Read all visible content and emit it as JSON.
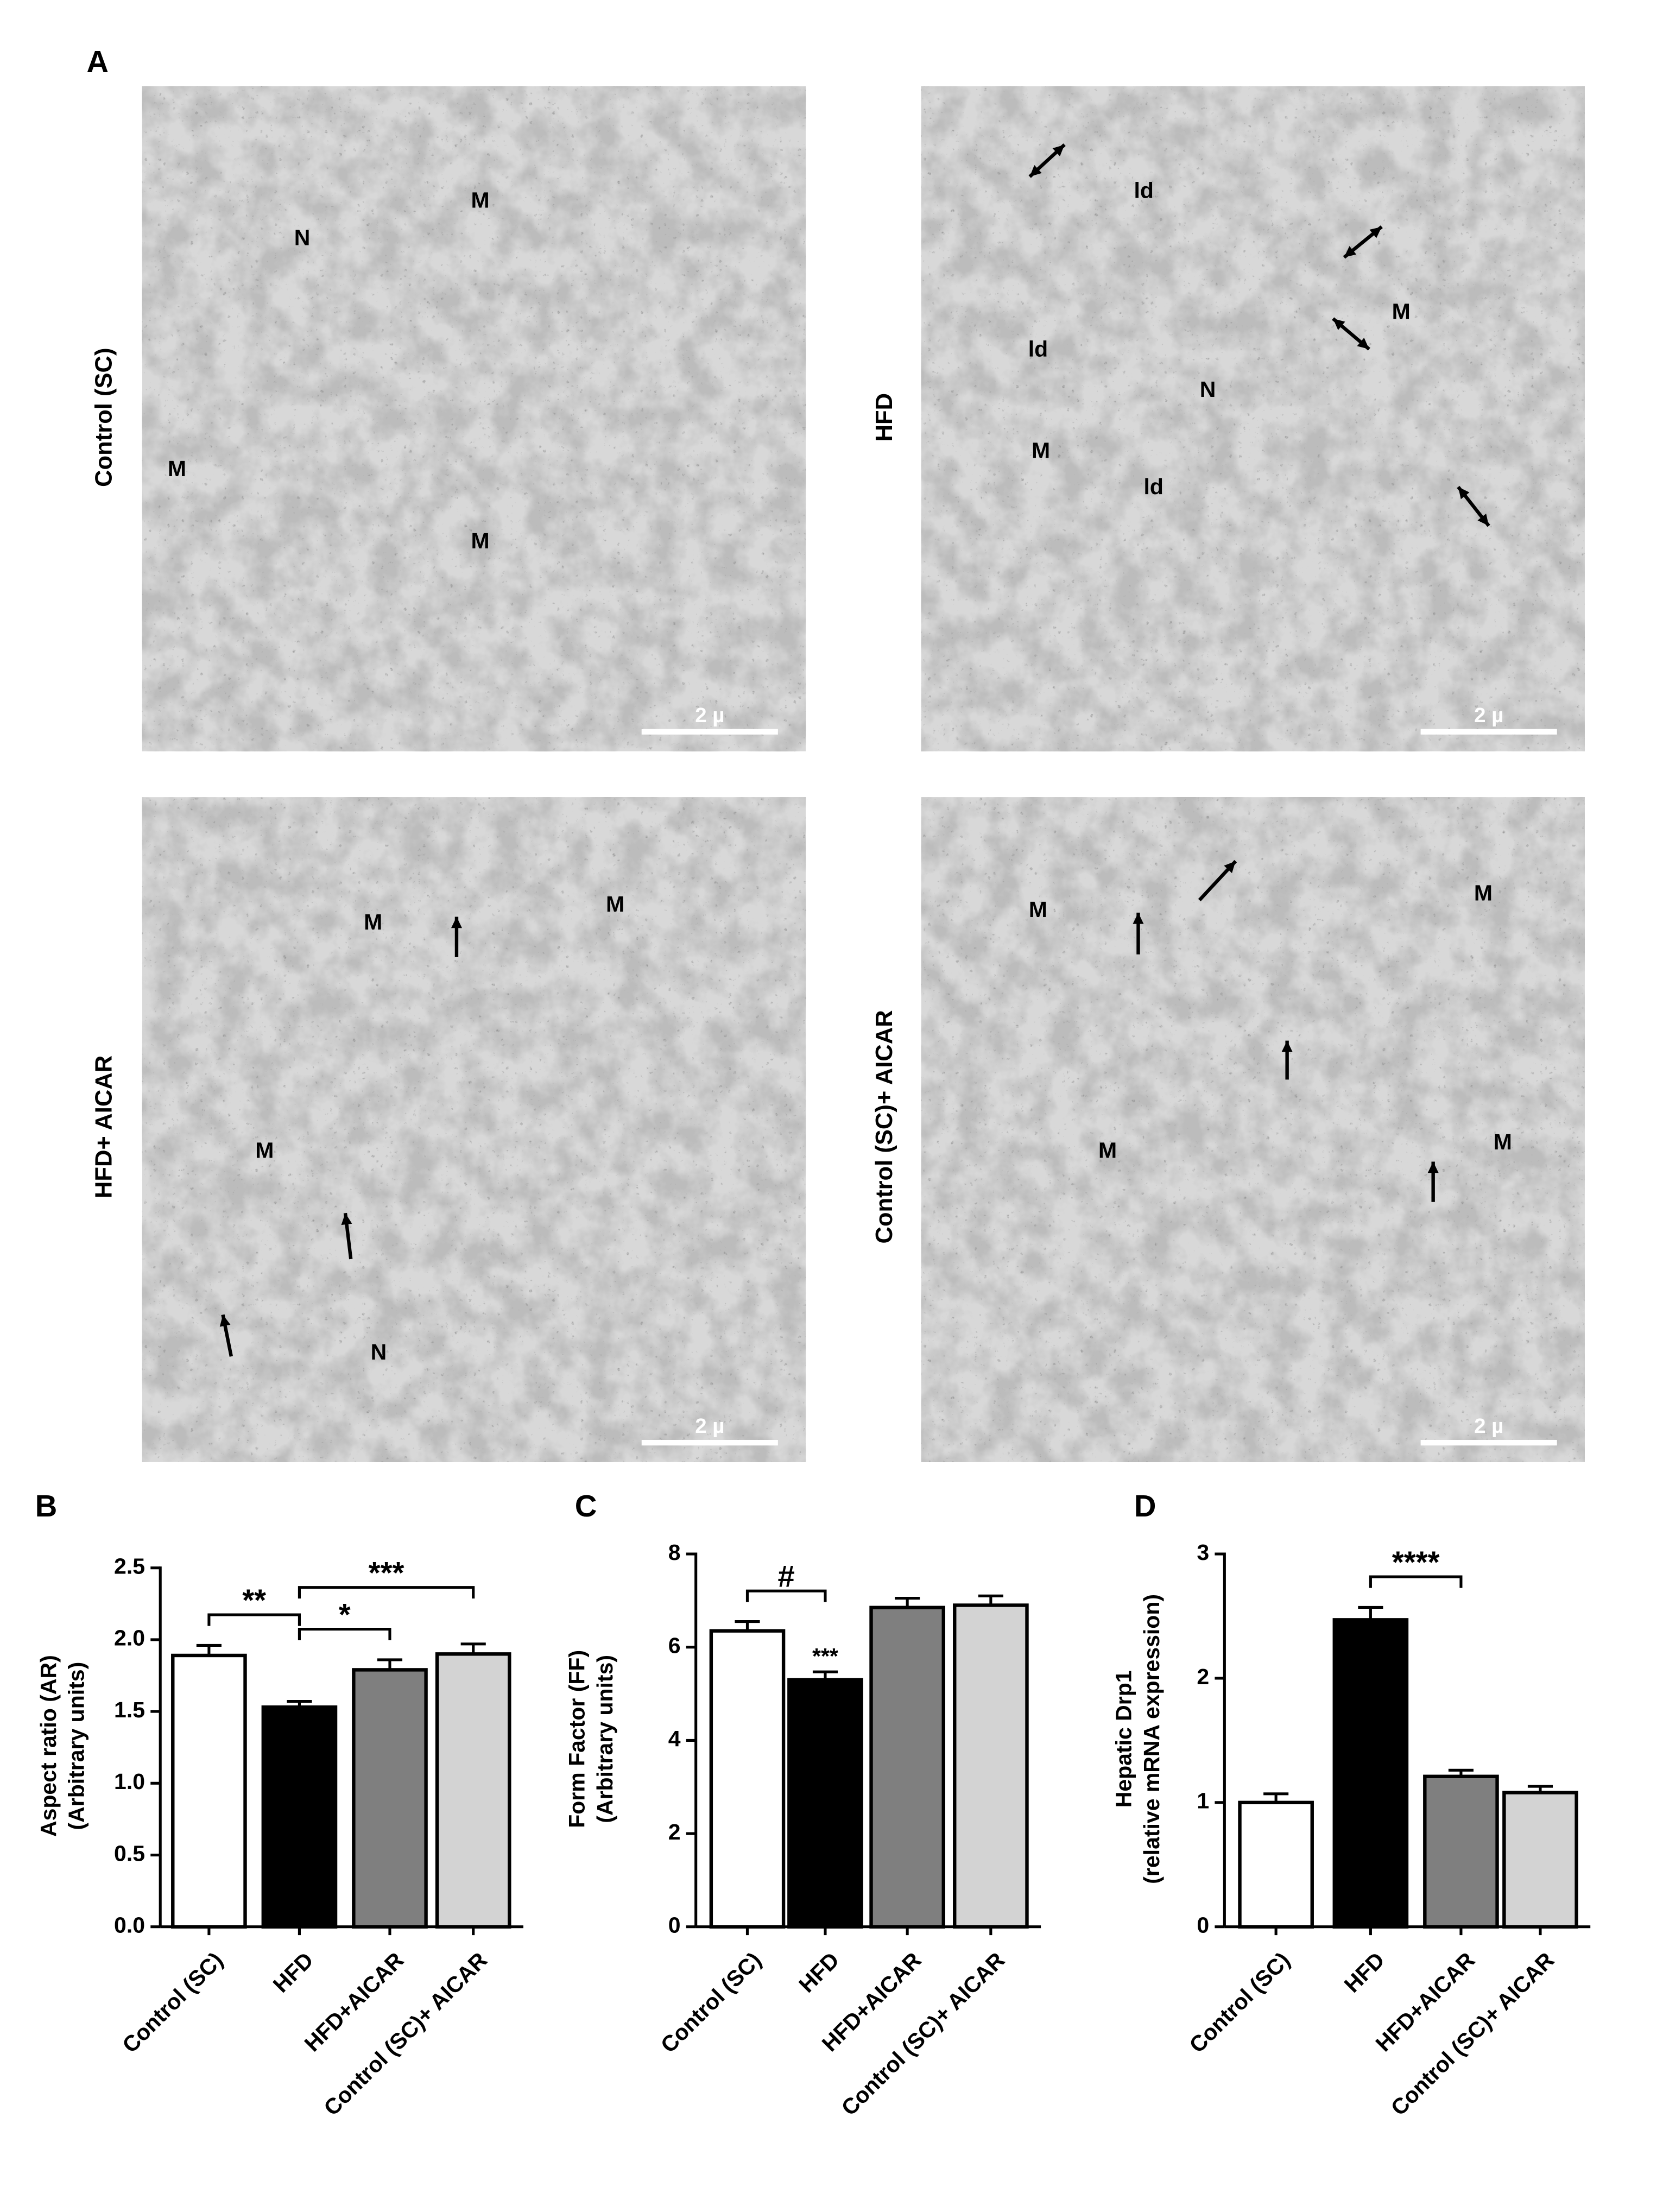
{
  "figure_label": "A",
  "micrographs": [
    {
      "title": "Control (SC)",
      "scale_bar": "2 µ",
      "labels": [
        "N",
        "M",
        "M",
        "M"
      ]
    },
    {
      "title": "HFD",
      "scale_bar": "2 µ",
      "labels": [
        "ld",
        "ld",
        "M",
        "N",
        "M",
        "ld"
      ]
    },
    {
      "title": "HFD+ AICAR",
      "scale_bar": "2 µ",
      "labels": [
        "M",
        "M",
        "M",
        "N"
      ]
    },
    {
      "title": "Control (SC)+ AICAR",
      "scale_bar": "2 µ",
      "labels": [
        "M",
        "M",
        "M",
        "M"
      ]
    }
  ],
  "chart_data": [
    {
      "type": "bar",
      "panel": "B",
      "ylabel": [
        "Aspect ratio (AR)",
        "(Arbitrary units)"
      ],
      "categories": [
        "Control (SC)",
        "HFD",
        "HFD+AICAR",
        "Control (SC)+ AICAR"
      ],
      "values": [
        1.89,
        1.53,
        1.79,
        1.9
      ],
      "errors": [
        0.07,
        0.04,
        0.07,
        0.07
      ],
      "colors": [
        "#ffffff",
        "#000000",
        "#7f7f7f",
        "#d3d3d3"
      ],
      "ylim": [
        0,
        2.5
      ],
      "yticks": [
        {
          "value": 0,
          "label": "0.0"
        },
        0.5,
        {
          "value": 1,
          "label": "1.0"
        },
        1.5,
        {
          "value": 2,
          "label": "2.0"
        },
        2.5
      ],
      "annotations": [
        {
          "text": "*",
          "between": [
            "HFD",
            "HFD+AICAR"
          ]
        },
        {
          "text": "**",
          "between": [
            "Control (SC)",
            "HFD"
          ]
        },
        {
          "text": "***",
          "between": [
            "HFD",
            "Control (SC)+ AICAR"
          ]
        }
      ]
    },
    {
      "type": "bar",
      "panel": "C",
      "ylabel": [
        "Form Factor (FF)",
        "(Arbitrary units)"
      ],
      "categories": [
        "Control (SC)",
        "HFD",
        "HFD+AICAR",
        "Control (SC)+ AICAR"
      ],
      "values": [
        6.35,
        5.3,
        6.85,
        6.9
      ],
      "errors": [
        0.2,
        0.17,
        0.2,
        0.2
      ],
      "colors": [
        "#ffffff",
        "#000000",
        "#7f7f7f",
        "#d3d3d3"
      ],
      "ylim": [
        0,
        8
      ],
      "yticks": [
        0,
        2,
        4,
        6,
        8
      ],
      "annotations": [
        {
          "text": "#",
          "between": [
            "Control (SC)",
            "HFD"
          ]
        },
        {
          "text": "***",
          "above": "HFD"
        }
      ]
    },
    {
      "type": "bar",
      "panel": "D",
      "ylabel": [
        "Hepatic Drp1",
        "(relative mRNA expression)"
      ],
      "categories": [
        "Control (SC)",
        "HFD",
        "HFD+AICAR",
        "Control (SC)+ AICAR"
      ],
      "values": [
        1.0,
        2.47,
        1.21,
        1.08
      ],
      "errors": [
        0.07,
        0.1,
        0.05,
        0.05
      ],
      "colors": [
        "#ffffff",
        "#000000",
        "#7f7f7f",
        "#d3d3d3"
      ],
      "ylim": [
        0,
        3
      ],
      "yticks": [
        0,
        1,
        2,
        3
      ],
      "annotations": [
        {
          "text": "****",
          "between": [
            "HFD",
            "HFD+AICAR"
          ]
        }
      ]
    }
  ]
}
